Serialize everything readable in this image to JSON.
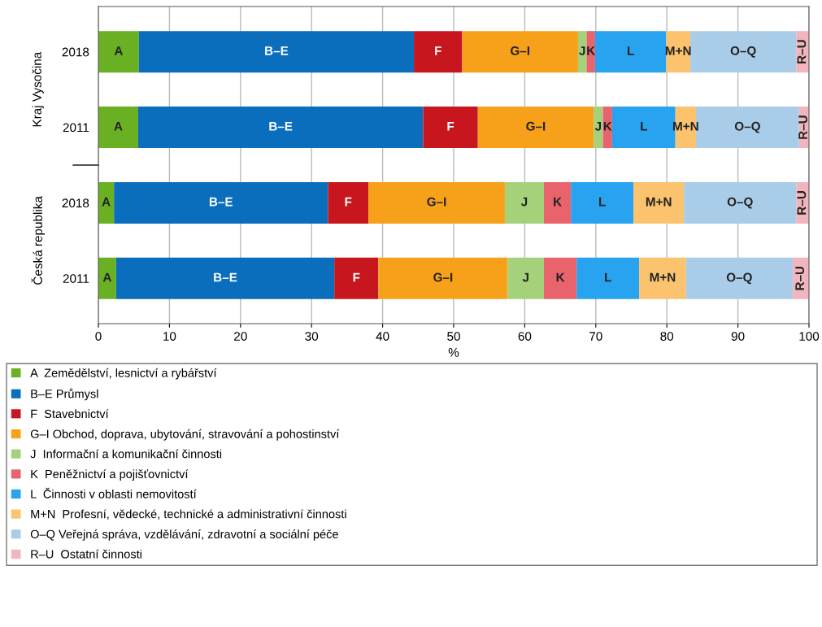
{
  "chart_data": {
    "type": "bar",
    "orientation": "horizontal",
    "stacked": true,
    "categories": [
      "2018",
      "2011",
      "2018",
      "2011"
    ],
    "xlabel": "%",
    "xlim": [
      0,
      100
    ],
    "xticks": [
      0,
      10,
      20,
      30,
      40,
      50,
      60,
      70,
      80,
      90,
      100
    ],
    "grid": "x",
    "legend": "bottom",
    "annotations": [
      "Kraj Vysočina",
      "Česká republika"
    ],
    "series": [
      {
        "name": "A  Zemědělství, lesnictví a rybářství",
        "color": "#6ab023",
        "values": [
          5.7,
          5.6,
          2.2,
          2.5
        ],
        "value_labels": [
          "A",
          "A",
          "A",
          "A"
        ]
      },
      {
        "name": "B–E Průmysl",
        "color": "#0a6ebd",
        "values": [
          38.7,
          40.1,
          30.1,
          30.7
        ],
        "value_labels": [
          "B–E",
          "B–E",
          "B–E",
          "B–E"
        ]
      },
      {
        "name": "F  Stavebnictví",
        "color": "#c8161e",
        "values": [
          6.8,
          7.7,
          5.7,
          6.2
        ],
        "value_labels": [
          "F",
          "F",
          "F",
          "F"
        ]
      },
      {
        "name": "G–I Obchod, doprava, ubytování, stravování a pohostinství",
        "color": "#f7a11a",
        "values": [
          16.3,
          16.3,
          19.2,
          18.2
        ],
        "value_labels": [
          "G–I",
          "G–I",
          "G–I",
          "G–I"
        ]
      },
      {
        "name": "J  Informační a komunikační činnosti",
        "color": "#a5d17a",
        "values": [
          1.2,
          1.3,
          5.5,
          5.1
        ],
        "value_labels": [
          "J",
          "J",
          "J",
          "J"
        ]
      },
      {
        "name": "K  Peněžnictví a pojišťovnictví",
        "color": "#e8636b",
        "values": [
          1.2,
          1.3,
          3.8,
          4.6
        ],
        "value_labels": [
          "K",
          "K",
          "K",
          "K"
        ]
      },
      {
        "name": "L  Činnosti v oblasti nemovitostí",
        "color": "#27a3f0",
        "values": [
          10.0,
          8.9,
          8.8,
          8.8
        ],
        "value_labels": [
          "L",
          "L",
          "L",
          "L"
        ]
      },
      {
        "name": "M+N  Profesní, vědecké, technické a administrativní činnosti",
        "color": "#fbc36e",
        "values": [
          3.4,
          2.9,
          7.1,
          6.6
        ],
        "value_labels": [
          "M+N",
          "M+N",
          "M+N",
          "M+N"
        ]
      },
      {
        "name": "O–Q Veřejná správa, vzdělávání, zdravotní a sociální péče",
        "color": "#a9cde9",
        "values": [
          14.9,
          14.5,
          15.8,
          15.0
        ],
        "value_labels": [
          "O–Q",
          "O–Q",
          "O–Q",
          "O–Q"
        ]
      },
      {
        "name": "R–U  Ostatní činnosti",
        "color": "#f0b5be",
        "values": [
          1.8,
          1.4,
          1.8,
          2.3
        ],
        "value_labels": [
          "R–U",
          "R–U",
          "R–U",
          "R–U"
        ]
      }
    ]
  }
}
